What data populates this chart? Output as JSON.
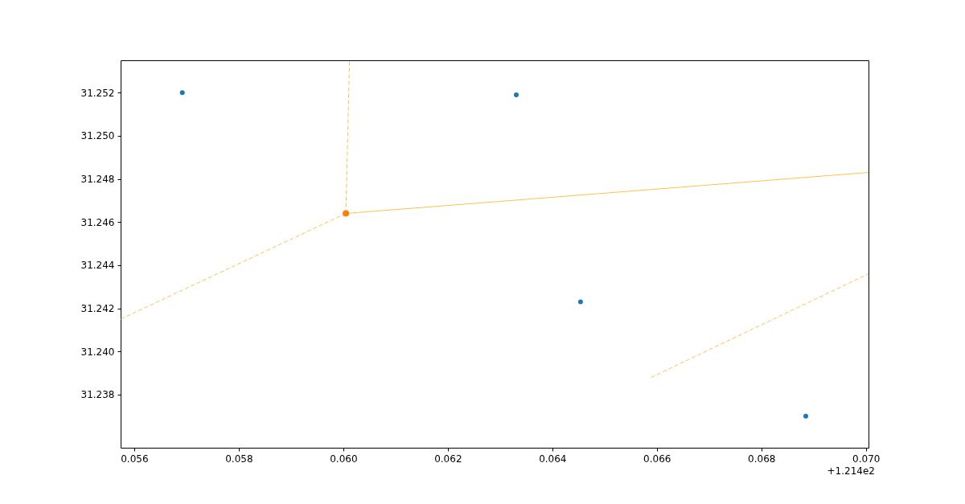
{
  "chart_data": {
    "type": "scatter",
    "grid": false,
    "xlim": [
      0.05574,
      0.07005
    ],
    "ylim": [
      31.23554,
      31.2535
    ],
    "xticks": [
      0.056,
      0.058,
      {
        "value": 0.06,
        "label": "0.060"
      },
      0.062,
      0.064,
      0.066,
      0.068,
      {
        "value": 0.07,
        "label": "0.070"
      }
    ],
    "yticks": [
      31.238,
      {
        "value": 31.24,
        "label": "31.240"
      },
      31.242,
      31.244,
      31.246,
      31.248,
      {
        "value": 31.25,
        "label": "31.250"
      },
      31.252
    ],
    "annotations": [
      "+1.214e2"
    ],
    "series": [
      {
        "type": "line",
        "line_style": "solid",
        "color": "#ffc14d",
        "x": [
          0.06005,
          0.07005
        ],
        "values": [
          31.2464,
          31.2483
        ]
      },
      {
        "type": "line",
        "line_style": "dashed",
        "color": "#ffc14d",
        "x": [
          0.06005,
          0.06012
        ],
        "values": [
          31.2464,
          31.2535
        ]
      },
      {
        "type": "line",
        "line_style": "dashed",
        "color": "#ffc14d",
        "x": [
          0.06005,
          0.05574
        ],
        "values": [
          31.2464,
          31.2415
        ]
      },
      {
        "type": "line",
        "line_style": "dashed",
        "color": "#ffc14d",
        "x": [
          0.06589,
          0.07005
        ],
        "values": [
          31.2388,
          31.2436
        ]
      },
      {
        "marker": "circle",
        "color": "#1f77b4",
        "x": [
          0.05692,
          0.06331,
          0.06454,
          0.06885
        ],
        "values": [
          31.252,
          31.2519,
          31.2423,
          31.237
        ]
      },
      {
        "marker": "circle",
        "color": "#ff7f0e",
        "x": [
          0.06005
        ],
        "values": [
          31.2464
        ]
      }
    ]
  }
}
